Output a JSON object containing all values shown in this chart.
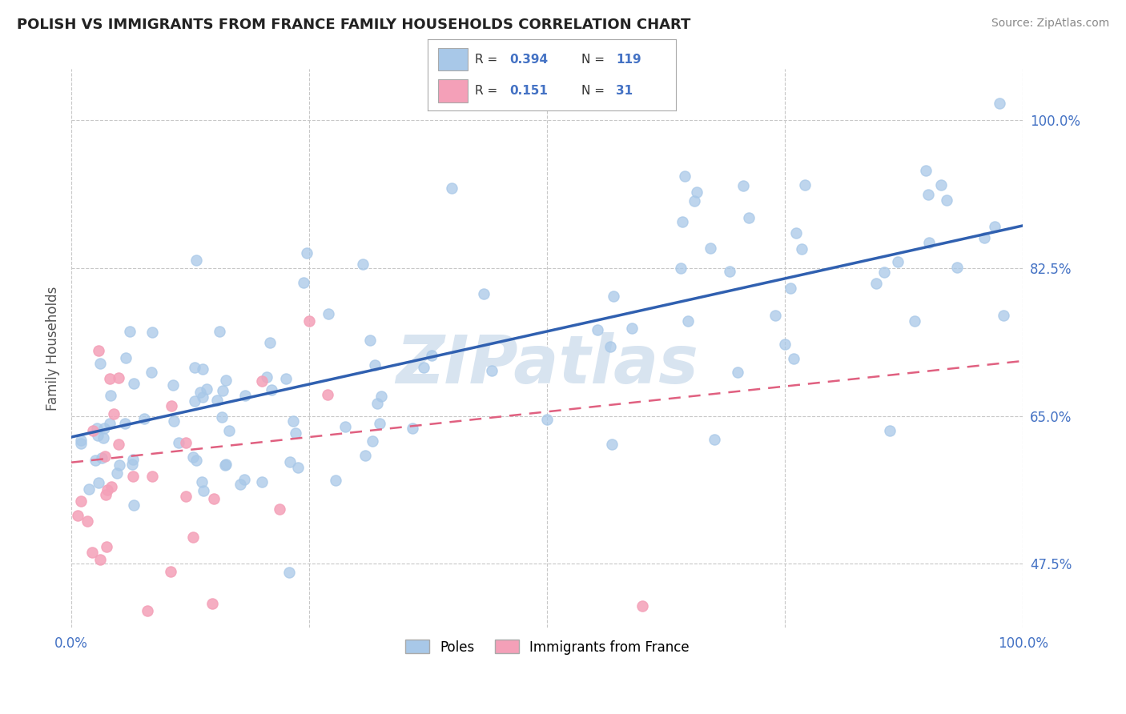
{
  "title": "POLISH VS IMMIGRANTS FROM FRANCE FAMILY HOUSEHOLDS CORRELATION CHART",
  "source_text": "Source: ZipAtlas.com",
  "ylabel": "Family Households",
  "legend_labels": [
    "Poles",
    "Immigrants from France"
  ],
  "legend_R": [
    0.394,
    0.151
  ],
  "legend_N": [
    119,
    31
  ],
  "blue_color": "#a8c8e8",
  "pink_color": "#f4a0b8",
  "blue_line_color": "#3060b0",
  "pink_line_color": "#e06080",
  "axis_label_color": "#4472c4",
  "title_color": "#222222",
  "background_color": "#ffffff",
  "grid_color": "#c8c8c8",
  "watermark_color": "#d8e4f0",
  "xlim": [
    0.0,
    1.0
  ],
  "ylim": [
    0.4,
    1.06
  ],
  "yticks": [
    0.475,
    0.65,
    0.825,
    1.0
  ],
  "ytick_labels": [
    "47.5%",
    "65.0%",
    "82.5%",
    "100.0%"
  ],
  "blue_trend_x0": 0.0,
  "blue_trend_y0": 0.625,
  "blue_trend_x1": 1.0,
  "blue_trend_y1": 0.875,
  "pink_trend_x0": 0.0,
  "pink_trend_y0": 0.595,
  "pink_trend_x1": 1.0,
  "pink_trend_y1": 0.715
}
